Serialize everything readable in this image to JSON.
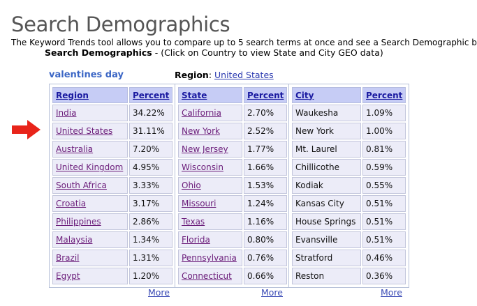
{
  "title": "Search Demographics",
  "intro": "The Keyword Trends tool allows you to compare up to 5 search terms at once and see a Search Demographic b",
  "subheading": {
    "bold": "Search Demographics",
    "rest": " - (Click on Country to view State and City GEO data)"
  },
  "term": "valentines day",
  "region": {
    "label": "Region",
    "value": "United States"
  },
  "more_label": "More",
  "regions_table": {
    "headers": [
      "Region",
      "Percent"
    ],
    "rows": [
      [
        "India",
        "34.22%"
      ],
      [
        "United States",
        "31.11%"
      ],
      [
        "Australia",
        "7.20%"
      ],
      [
        "United Kingdom",
        "4.95%"
      ],
      [
        "South Africa",
        "3.33%"
      ],
      [
        "Croatia",
        "3.17%"
      ],
      [
        "Philippines",
        "2.86%"
      ],
      [
        "Malaysia",
        "1.34%"
      ],
      [
        "Brazil",
        "1.31%"
      ],
      [
        "Egypt",
        "1.20%"
      ]
    ]
  },
  "states_table": {
    "headers": [
      "State",
      "Percent"
    ],
    "rows": [
      [
        "California",
        "2.70%"
      ],
      [
        "New York",
        "2.52%"
      ],
      [
        "New Jersey",
        "1.77%"
      ],
      [
        "Wisconsin",
        "1.66%"
      ],
      [
        "Ohio",
        "1.53%"
      ],
      [
        "Missouri",
        "1.24%"
      ],
      [
        "Texas",
        "1.16%"
      ],
      [
        "Florida",
        "0.80%"
      ],
      [
        "Pennsylvania",
        "0.76%"
      ],
      [
        "Connecticut",
        "0.66%"
      ]
    ]
  },
  "cities_table": {
    "headers": [
      "City",
      "Percent"
    ],
    "rows": [
      [
        "Waukesha",
        "1.09%"
      ],
      [
        "New York",
        "1.00%"
      ],
      [
        "Mt. Laurel",
        "0.81%"
      ],
      [
        "Chillicothe",
        "0.59%"
      ],
      [
        "Kodiak",
        "0.55%"
      ],
      [
        "Kansas City",
        "0.51%"
      ],
      [
        "House Springs",
        "0.51%"
      ],
      [
        "Evansville",
        "0.51%"
      ],
      [
        "Stratford",
        "0.46%"
      ],
      [
        "Reston",
        "0.36%"
      ]
    ]
  },
  "colors": {
    "arrow": "#e8241a",
    "header_bg": "#c6ccf5",
    "cell_bg": "#ececf8",
    "term": "#3b66c5"
  }
}
